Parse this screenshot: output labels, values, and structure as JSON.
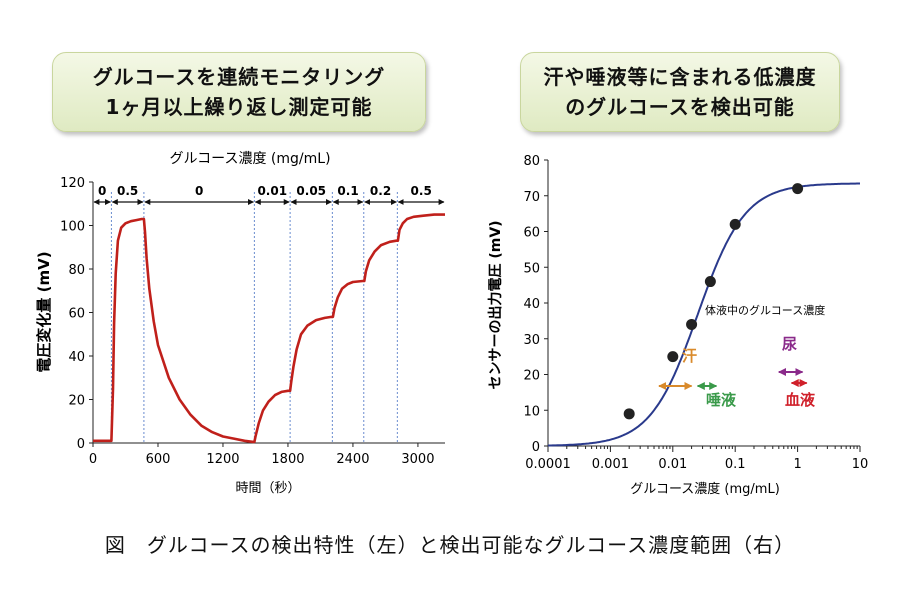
{
  "figure": {
    "caption": "図　グルコースの検出特性（左）と検出可能なグルコース濃度範囲（右）"
  },
  "left_banner": {
    "line1": "グルコースを連続モニタリング",
    "line2": "1ヶ月以上繰り返し測定可能"
  },
  "right_banner": {
    "line1": "汗や唾液等に含まれる低濃度",
    "line2": "のグルコースを検出可能"
  },
  "chart_data": [
    {
      "type": "line",
      "title": "グルコース濃度 (mg/mL)",
      "xlabel": "時間（秒）",
      "ylabel": "電圧変化量 (mV)",
      "xlim": [
        0,
        3250
      ],
      "ylim": [
        0,
        120
      ],
      "xticks": [
        0,
        600,
        1200,
        1800,
        2400,
        3000
      ],
      "yticks": [
        0,
        20,
        40,
        60,
        80,
        100,
        120
      ],
      "line_color": "#c0201b",
      "segments": [
        {
          "label": "0",
          "start": 0,
          "end": 170
        },
        {
          "label": "0.5",
          "start": 170,
          "end": 470
        },
        {
          "label": "0",
          "start": 470,
          "end": 1490
        },
        {
          "label": "0.01",
          "start": 1490,
          "end": 1820
        },
        {
          "label": "0.05",
          "start": 1820,
          "end": 2210
        },
        {
          "label": "0.1",
          "start": 2210,
          "end": 2500
        },
        {
          "label": "0.2",
          "start": 2500,
          "end": 2810
        },
        {
          "label": "0.5",
          "start": 2810,
          "end": 3250
        }
      ],
      "x": [
        0,
        170,
        185,
        195,
        210,
        230,
        260,
        300,
        350,
        400,
        450,
        470,
        480,
        495,
        520,
        560,
        600,
        700,
        800,
        900,
        1000,
        1100,
        1200,
        1300,
        1400,
        1480,
        1490,
        1500,
        1530,
        1570,
        1620,
        1680,
        1740,
        1800,
        1820,
        1830,
        1850,
        1880,
        1920,
        1980,
        2060,
        2140,
        2200,
        2215,
        2230,
        2260,
        2300,
        2350,
        2400,
        2490,
        2505,
        2520,
        2550,
        2600,
        2660,
        2740,
        2800,
        2815,
        2830,
        2860,
        2900,
        2960,
        3050,
        3150,
        3250
      ],
      "y": [
        1,
        1,
        25,
        55,
        78,
        93,
        99,
        101,
        102,
        102.5,
        103,
        103,
        97,
        85,
        71,
        56,
        45,
        30,
        20,
        13,
        8,
        5,
        3,
        2,
        1,
        0.5,
        0.5,
        3,
        9,
        15,
        19,
        22,
        23.5,
        24,
        24,
        28,
        35,
        43,
        50,
        54,
        56.5,
        57.5,
        58,
        58,
        62,
        67,
        71,
        73,
        74,
        74.5,
        74.5,
        79,
        84,
        88,
        91,
        92.5,
        93,
        93,
        98,
        101,
        103,
        104,
        104.5,
        105,
        105
      ]
    },
    {
      "type": "scatter",
      "xlabel": "グルコース濃度 (mg/mL)",
      "ylabel": "センサーの出力電圧 (mV)",
      "xscale": "log",
      "xlim": [
        0.0001,
        10
      ],
      "ylim": [
        0,
        80
      ],
      "xticks": [
        0.0001,
        0.001,
        0.01,
        0.1,
        1,
        10
      ],
      "xtick_labels": [
        "0.0001",
        "0.001",
        "0.01",
        "0.1",
        "1",
        "10"
      ],
      "yticks": [
        0,
        10,
        20,
        30,
        40,
        50,
        60,
        70,
        80
      ],
      "points": {
        "x": [
          0.002,
          0.01,
          0.02,
          0.04,
          0.1,
          1
        ],
        "y": [
          9,
          25,
          34,
          46,
          62,
          72
        ]
      },
      "fit_curve": {
        "color": "#2a3a8c",
        "min": 0,
        "max": 73.5,
        "x50": 0.025,
        "slope": 1.15
      },
      "annotations": {
        "region_label": "体液中のグルコース濃度",
        "ranges": [
          {
            "label": "汗",
            "color": "#d98a2b",
            "from": 0.006,
            "to": 0.02
          },
          {
            "label": "唾液",
            "color": "#3a9a4a",
            "from": 0.025,
            "to": 0.05
          },
          {
            "label": "尿",
            "color": "#8a2a8a",
            "from": 0.5,
            "to": 1.2
          },
          {
            "label": "血液",
            "color": "#d0202a",
            "from": 0.8,
            "to": 1.4
          }
        ]
      }
    }
  ]
}
